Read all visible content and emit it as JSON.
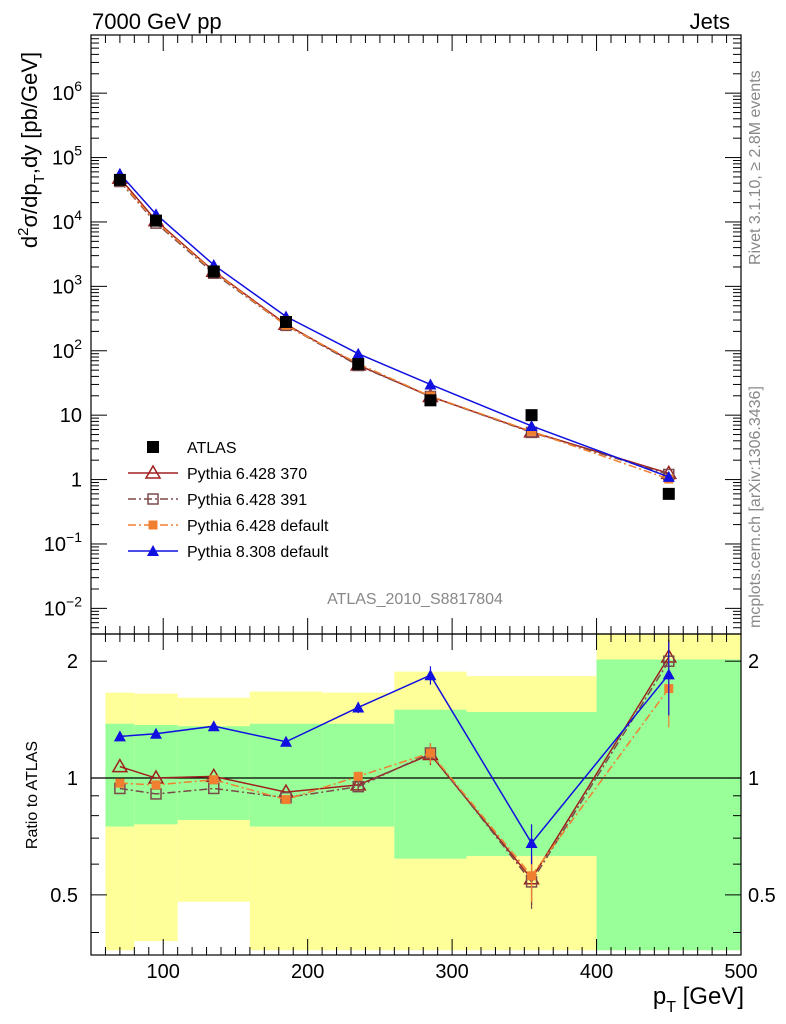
{
  "header": {
    "left": "7000 GeV pp",
    "right": "Jets"
  },
  "side": {
    "top": "Rivet 3.1.10, ≥ 2.8M events",
    "bottom": "mcplots.cern.ch [arXiv:1306.3436]"
  },
  "analysis_label": "ATLAS_2010_S8817804",
  "chart_data": [
    {
      "type": "scatter",
      "title": "",
      "ylabel_parts": [
        "d",
        "2",
        "σ/dp",
        "T",
        ",dy [pb/GeV]"
      ],
      "xlim": [
        50,
        500
      ],
      "ylim": [
        0.004,
        8000000
      ],
      "yscale": "log",
      "yticks": [
        {
          "v": 0.01,
          "b": "10",
          "e": "−2"
        },
        {
          "v": 0.1,
          "b": "10",
          "e": "−1"
        },
        {
          "v": 1,
          "b": "1",
          "e": ""
        },
        {
          "v": 10,
          "b": "10",
          "e": ""
        },
        {
          "v": 100,
          "b": "10",
          "e": "2"
        },
        {
          "v": 1000,
          "b": "10",
          "e": "3"
        },
        {
          "v": 10000,
          "b": "10",
          "e": "4"
        },
        {
          "v": 100000,
          "b": "10",
          "e": "5"
        },
        {
          "v": 1000000,
          "b": "10",
          "e": "6"
        }
      ],
      "legend_position": "lower-left",
      "series": [
        {
          "name": "ATLAS",
          "color": "#000000",
          "marker": "square-filled",
          "line": "none",
          "x": [
            70,
            95,
            135,
            185,
            235,
            285,
            355,
            450
          ],
          "y": [
            45000,
            10500,
            1700,
            280,
            62,
            17,
            10,
            0.6
          ]
        },
        {
          "name": "Pythia 6.428 370",
          "color": "#a02020",
          "marker": "triangle-open",
          "line": "solid",
          "x": [
            70,
            95,
            135,
            185,
            235,
            285,
            355,
            450
          ],
          "y": [
            48000,
            10500,
            1720,
            258,
            60,
            19.5,
            5.5,
            1.25
          ]
        },
        {
          "name": "Pythia 6.428 391",
          "color": "#7a4a4a",
          "marker": "square-open",
          "line": "dashdot",
          "x": [
            70,
            95,
            135,
            185,
            235,
            285,
            355,
            450
          ],
          "y": [
            42500,
            9600,
            1600,
            248,
            59,
            19.5,
            5.4,
            1.2
          ]
        },
        {
          "name": "Pythia 6.428 default",
          "color": "#f07f30",
          "marker": "square-filled-small",
          "line": "dashdot",
          "x": [
            70,
            95,
            135,
            185,
            235,
            285,
            355,
            450
          ],
          "y": [
            44000,
            10000,
            1690,
            248,
            63,
            19.7,
            5.6,
            1.02
          ]
        },
        {
          "name": "Pythia 8.308 default",
          "color": "#1010e0",
          "marker": "triangle-filled",
          "line": "solid",
          "x": [
            70,
            95,
            135,
            185,
            235,
            285,
            355,
            450
          ],
          "y": [
            56000,
            13200,
            2150,
            340,
            90,
            30,
            6.8,
            1.1
          ]
        }
      ]
    },
    {
      "type": "scatter",
      "xlabel_parts": [
        "p",
        "T",
        " [GeV]"
      ],
      "ylabel": "Ratio to ATLAS",
      "xlim": [
        50,
        500
      ],
      "ylim": [
        0.35,
        2.35
      ],
      "yscale": "log",
      "xticks": [
        100,
        200,
        300,
        400,
        500
      ],
      "yticks": [
        0.5,
        1,
        2
      ],
      "reference": 1,
      "bands": [
        {
          "x0": 60,
          "x1": 80,
          "inner": [
            0.75,
            1.38
          ],
          "outer": [
            0.36,
            1.66
          ]
        },
        {
          "x0": 80,
          "x1": 110,
          "inner": [
            0.76,
            1.37
          ],
          "outer": [
            0.38,
            1.65
          ]
        },
        {
          "x0": 110,
          "x1": 160,
          "inner": [
            0.78,
            1.36
          ],
          "outer": [
            0.48,
            1.61
          ]
        },
        {
          "x0": 160,
          "x1": 210,
          "inner": [
            0.75,
            1.38
          ],
          "outer": [
            0.36,
            1.67
          ]
        },
        {
          "x0": 210,
          "x1": 260,
          "inner": [
            0.75,
            1.38
          ],
          "outer": [
            0.36,
            1.66
          ]
        },
        {
          "x0": 260,
          "x1": 310,
          "inner": [
            0.62,
            1.5
          ],
          "outer": [
            0.36,
            1.88
          ]
        },
        {
          "x0": 310,
          "x1": 400,
          "inner": [
            0.63,
            1.48
          ],
          "outer": [
            0.36,
            1.83
          ]
        },
        {
          "x0": 400,
          "x1": 500,
          "inner": [
            0.36,
            2.02
          ],
          "outer": [
            0.36,
            2.35
          ]
        }
      ],
      "series": [
        {
          "name": "Pythia 6.428 370",
          "x": [
            70,
            95,
            135,
            185,
            235,
            285,
            355,
            450
          ],
          "y": [
            1.07,
            1.0,
            1.01,
            0.92,
            0.96,
            1.15,
            0.55,
            2.05
          ],
          "err": [
            0.01,
            0.01,
            0.01,
            0.01,
            0.03,
            0.07,
            0.08,
            0.22
          ]
        },
        {
          "name": "Pythia 6.428 391",
          "x": [
            70,
            95,
            135,
            185,
            235,
            285,
            355,
            450
          ],
          "y": [
            0.94,
            0.91,
            0.94,
            0.89,
            0.95,
            1.16,
            0.54,
            2.0
          ],
          "err": [
            0.01,
            0.01,
            0.01,
            0.01,
            0.03,
            0.07,
            0.08,
            0.22
          ]
        },
        {
          "name": "Pythia 6.428 default",
          "x": [
            70,
            95,
            135,
            185,
            235,
            285,
            355,
            450
          ],
          "y": [
            0.97,
            0.96,
            0.99,
            0.88,
            1.01,
            1.16,
            0.56,
            1.7
          ],
          "err": [
            0.01,
            0.01,
            0.01,
            0.01,
            0.03,
            0.07,
            0.08,
            0.35
          ]
        },
        {
          "name": "Pythia 8.308 default",
          "x": [
            70,
            95,
            135,
            185,
            235,
            285,
            355,
            450
          ],
          "y": [
            1.28,
            1.3,
            1.36,
            1.24,
            1.52,
            1.84,
            0.68,
            1.85
          ],
          "err": [
            0.01,
            0.01,
            0.01,
            0.01,
            0.05,
            0.1,
            0.08,
            0.4
          ]
        }
      ]
    }
  ]
}
